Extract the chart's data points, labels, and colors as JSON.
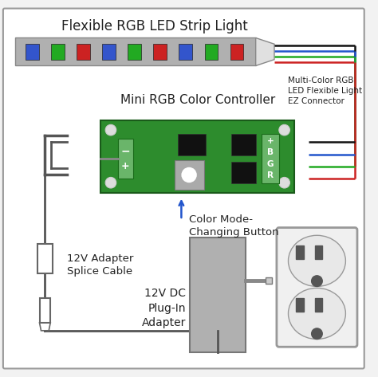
{
  "bg_color": "#f2f2f2",
  "border_color": "#999999",
  "strip_label": "Flexible RGB LED Strip Light",
  "controller_label": "Mini RGB Color Controller",
  "connector_label": "Multi-Color RGB\nLED Flexible Light\nEZ Connector",
  "button_label": "Color Mode-\nChanging Button",
  "splice_label": "12V Adapter\nSplice Cable",
  "adapter_label": "12V DC\nPlug-In\nAdapter",
  "led_colors": [
    "#3355cc",
    "#22aa22",
    "#cc2222",
    "#3355cc",
    "#22aa22",
    "#cc2222",
    "#3355cc",
    "#22aa22",
    "#cc2222"
  ],
  "strip_color": "#b0b0b0",
  "board_color": "#2d8c2d",
  "green_terminal": "#6ab56a",
  "black_component": "#111111",
  "gray_button": "#999999",
  "wire_black": "#111111",
  "wire_blue": "#2255cc",
  "wire_green": "#22aa22",
  "wire_red": "#cc2222",
  "outlet_color": "#f0f0f0",
  "outlet_border": "#999999",
  "adapter_color": "#b0b0b0",
  "label_color": "#222222",
  "arrow_color": "#2255cc",
  "white": "#ffffff",
  "screw_color": "#dddddd",
  "wire_gray": "#888888"
}
